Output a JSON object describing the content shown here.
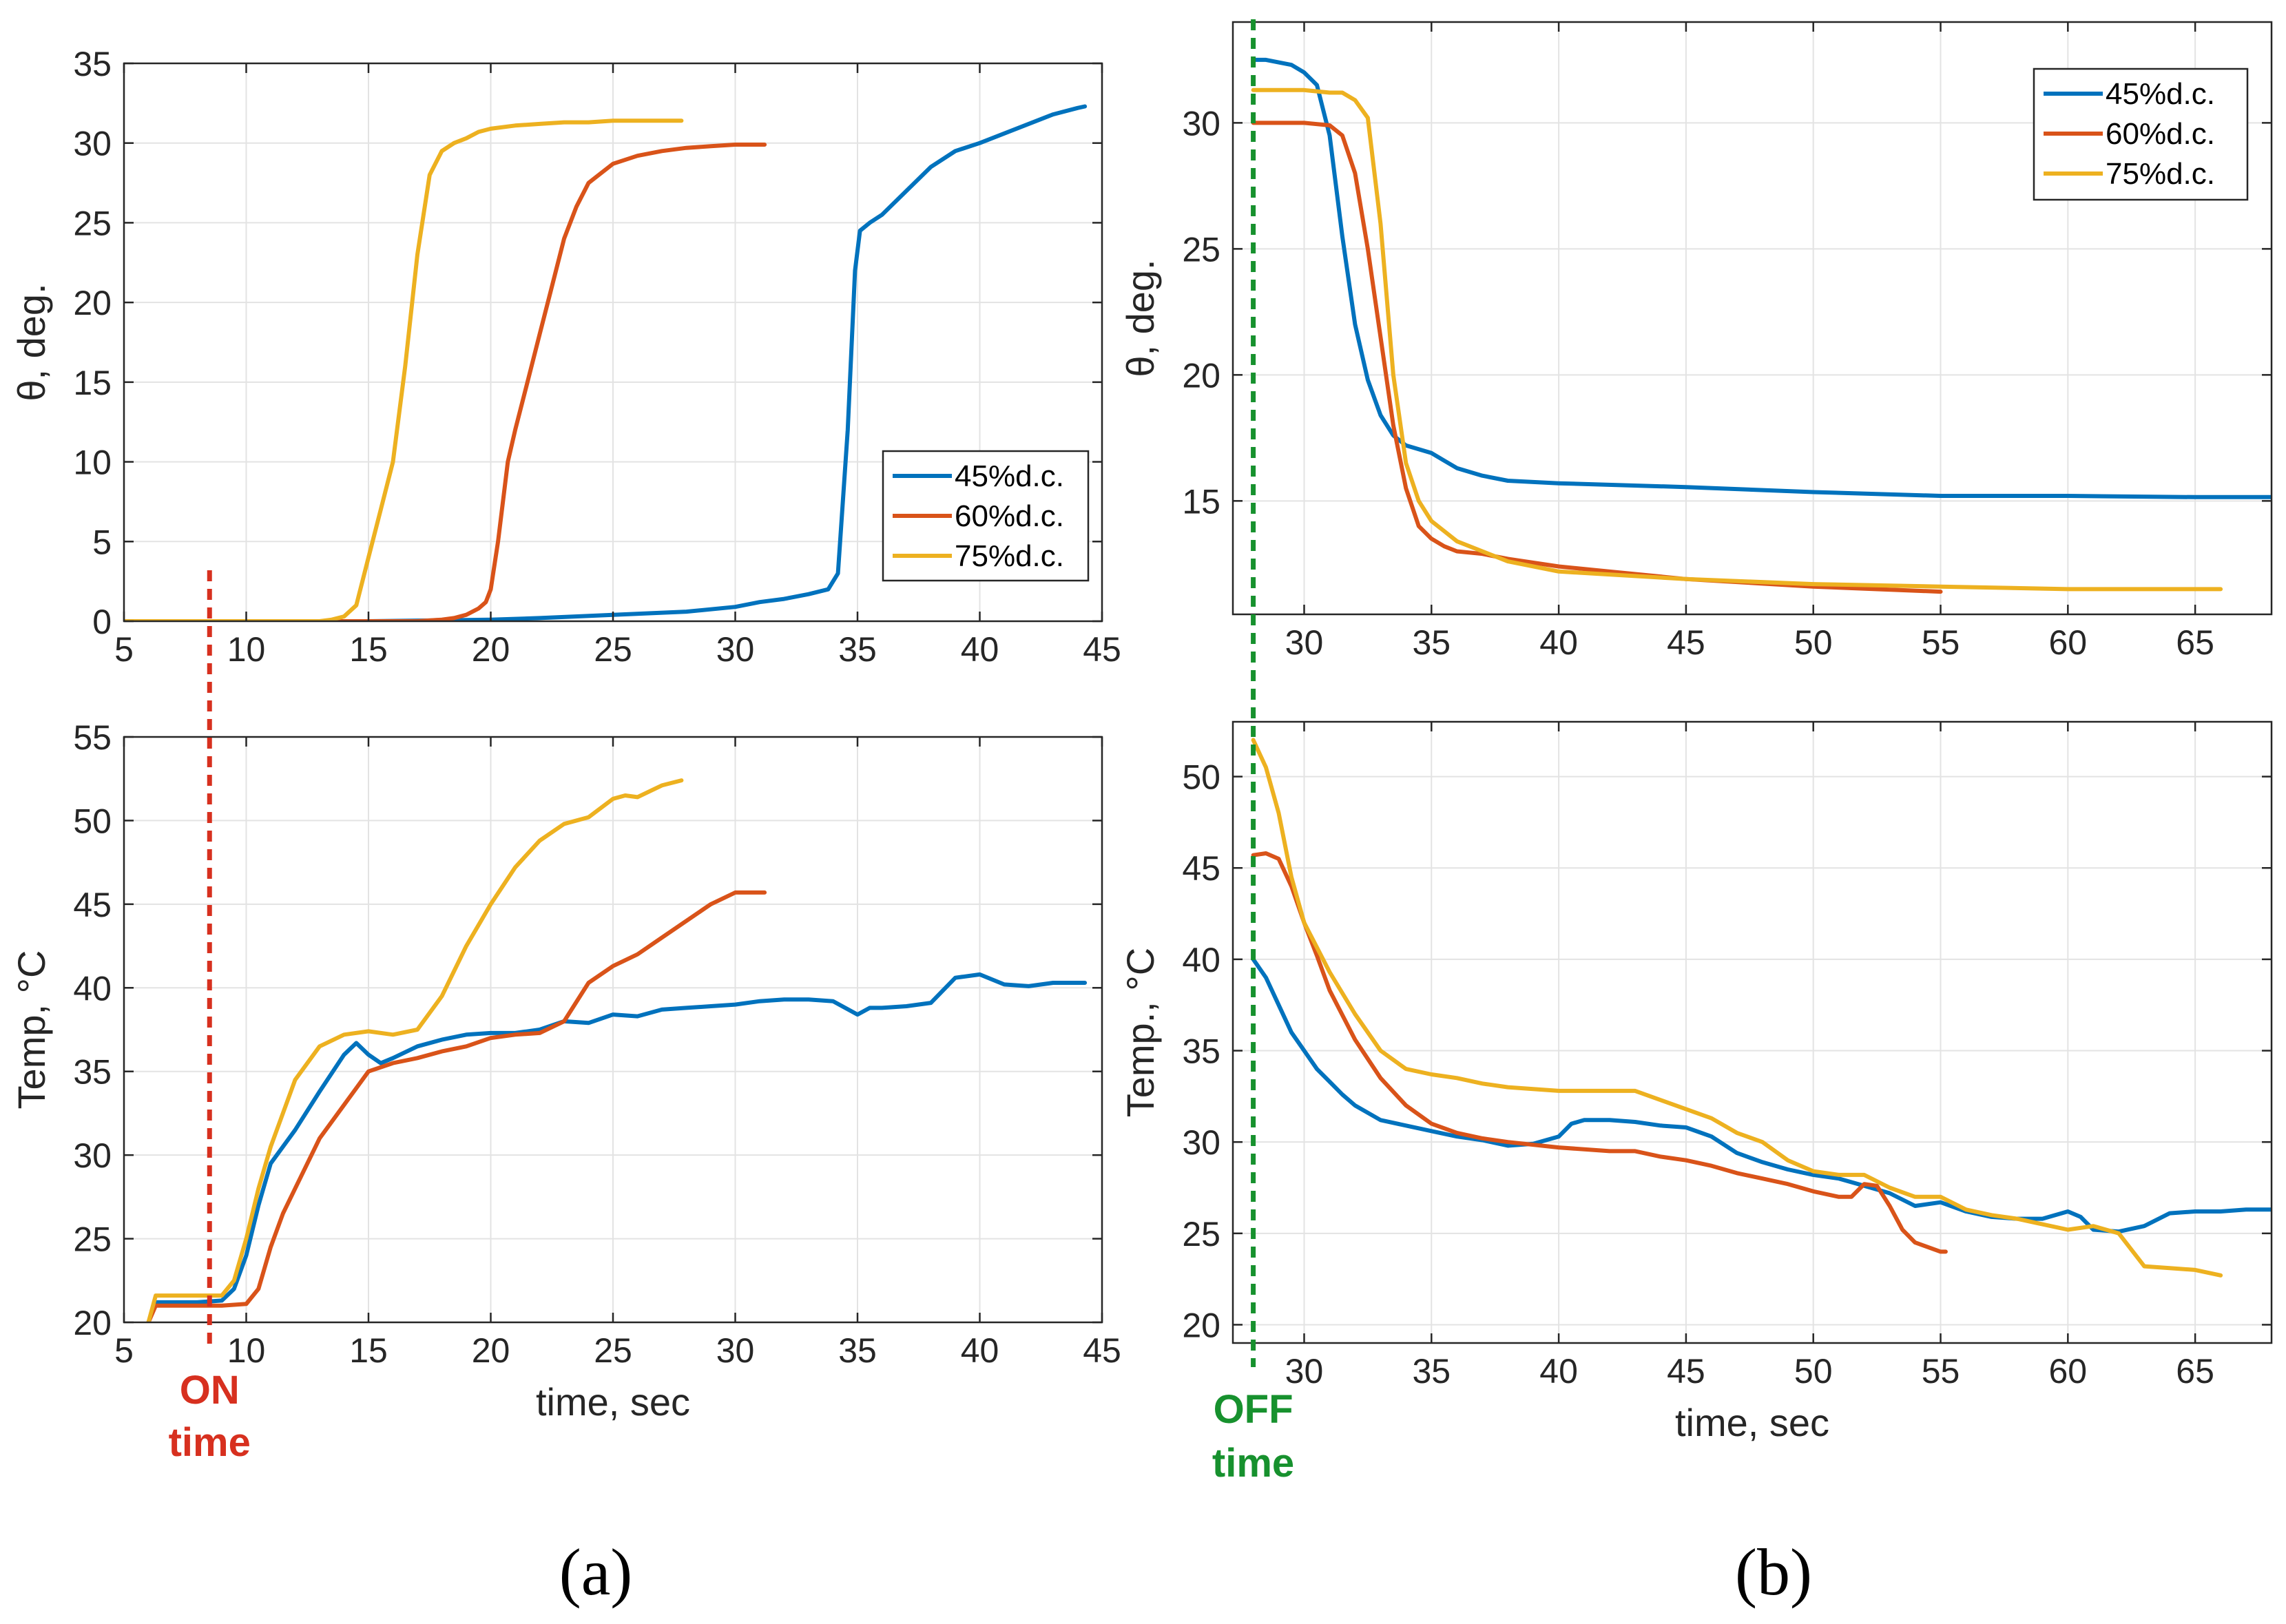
{
  "colors": {
    "s45": "#0072BD",
    "s60": "#D95319",
    "s75": "#EDB120",
    "on_marker": "#D7301F",
    "off_marker": "#17912E"
  },
  "labels": {
    "panel_a": "(a)",
    "panel_b": "(b)"
  },
  "markers": {
    "on": {
      "line1": "ON",
      "line2": "time",
      "x": 8.5
    },
    "off": {
      "line1": "OFF",
      "line2": "time",
      "x": 28
    }
  },
  "chart_data": [
    {
      "id": "a-top",
      "type": "line",
      "xlabel": "",
      "ylabel": "θ, deg.",
      "xlim": [
        5,
        45
      ],
      "ylim": [
        0,
        35
      ],
      "xticks": [
        5,
        10,
        15,
        20,
        25,
        30,
        35,
        40,
        45
      ],
      "xtick_labels": [
        "5",
        "10",
        "15",
        "20",
        "25",
        "30",
        "35",
        "40",
        "45"
      ],
      "yticks": [
        0,
        5,
        10,
        15,
        20,
        25,
        30,
        35
      ],
      "legend": {
        "position": "bottom-right",
        "entries": [
          "45%d.c.",
          "60%d.c.",
          "75%d.c."
        ]
      },
      "series": [
        {
          "name": "45%d.c.",
          "color_key": "s45",
          "x": [
            5,
            15,
            20,
            22,
            25,
            28,
            30,
            31,
            32,
            33,
            33.8,
            34.2,
            34.6,
            34.9,
            35.1,
            35.5,
            36,
            37,
            38,
            39,
            40,
            41,
            42,
            43,
            44,
            44.3
          ],
          "y": [
            0,
            0,
            0.1,
            0.2,
            0.4,
            0.6,
            0.9,
            1.2,
            1.4,
            1.7,
            2,
            3,
            12,
            22,
            24.5,
            25,
            25.5,
            27,
            28.5,
            29.5,
            30,
            30.6,
            31.2,
            31.8,
            32.2,
            32.3
          ]
        },
        {
          "name": "60%d.c.",
          "color_key": "s60",
          "x": [
            5,
            15,
            17,
            18,
            18.5,
            19,
            19.5,
            19.8,
            20,
            20.3,
            20.7,
            21,
            21.5,
            22,
            22.5,
            23,
            23.5,
            24,
            25,
            26,
            27,
            28,
            29,
            30,
            31,
            31.2
          ],
          "y": [
            0,
            0,
            0,
            0.1,
            0.2,
            0.4,
            0.8,
            1.2,
            2,
            5,
            10,
            12,
            15,
            18,
            21,
            24,
            26,
            27.5,
            28.7,
            29.2,
            29.5,
            29.7,
            29.8,
            29.9,
            29.9,
            29.9
          ]
        },
        {
          "name": "75%d.c.",
          "color_key": "s75",
          "x": [
            5,
            13,
            13.5,
            14,
            14.5,
            15,
            15.5,
            16,
            16.5,
            17,
            17.5,
            18,
            18.5,
            19,
            19.5,
            20,
            21,
            22,
            23,
            24,
            25,
            26,
            27,
            27.8
          ],
          "y": [
            0,
            0,
            0.1,
            0.3,
            1,
            4,
            7,
            10,
            16,
            23,
            28,
            29.5,
            30,
            30.3,
            30.7,
            30.9,
            31.1,
            31.2,
            31.3,
            31.3,
            31.4,
            31.4,
            31.4,
            31.4
          ]
        }
      ]
    },
    {
      "id": "a-bottom",
      "type": "line",
      "xlabel": "time, sec",
      "ylabel": "Temp, °C",
      "xlim": [
        5,
        45
      ],
      "ylim": [
        20,
        55
      ],
      "xticks": [
        5,
        10,
        15,
        20,
        25,
        30,
        35,
        40,
        45
      ],
      "xtick_labels": [
        "5",
        "10",
        "15",
        "20",
        "25",
        "30",
        "35",
        "40",
        "45"
      ],
      "yticks": [
        20,
        25,
        30,
        35,
        40,
        45,
        50,
        55
      ],
      "series": [
        {
          "name": "45%d.c.",
          "color_key": "s45",
          "x": [
            6,
            6.3,
            7,
            8,
            9,
            9.5,
            10,
            10.5,
            11,
            12,
            13,
            14,
            14.5,
            15,
            15.5,
            16,
            17,
            18,
            19,
            20,
            21,
            22,
            23,
            24,
            25,
            26,
            27,
            28,
            29,
            30,
            31,
            32,
            33,
            34,
            35,
            35.5,
            36,
            37,
            38,
            39,
            40,
            41,
            42,
            43,
            44,
            44.3
          ],
          "y": [
            20,
            21.2,
            21.2,
            21.2,
            21.3,
            22,
            24,
            27,
            29.5,
            31.5,
            33.8,
            36,
            36.7,
            36,
            35.5,
            35.8,
            36.5,
            36.9,
            37.2,
            37.3,
            37.3,
            37.5,
            38,
            37.9,
            38.4,
            38.3,
            38.7,
            38.8,
            38.9,
            39,
            39.2,
            39.3,
            39.3,
            39.2,
            38.4,
            38.8,
            38.8,
            38.9,
            39.1,
            40.6,
            40.8,
            40.2,
            40.1,
            40.3,
            40.3,
            40.3
          ]
        },
        {
          "name": "60%d.c.",
          "color_key": "s60",
          "x": [
            6,
            6.3,
            7,
            8,
            9,
            10,
            10.5,
            11,
            11.5,
            12,
            13,
            14,
            15,
            16,
            17,
            18,
            19,
            20,
            21,
            22,
            23,
            24,
            25,
            26,
            27,
            28,
            29,
            30,
            31,
            31.2
          ],
          "y": [
            20,
            21,
            21,
            21,
            21,
            21.1,
            22,
            24.5,
            26.5,
            28,
            31,
            33,
            35,
            35.5,
            35.8,
            36.2,
            36.5,
            37,
            37.2,
            37.3,
            38,
            40.3,
            41.3,
            42,
            43,
            44,
            45,
            45.7,
            45.7,
            45.7
          ]
        },
        {
          "name": "75%d.c.",
          "color_key": "s75",
          "x": [
            6,
            6.3,
            7,
            8,
            9,
            9.5,
            10,
            10.5,
            11,
            11.5,
            12,
            13,
            14,
            15,
            16,
            17,
            18,
            19,
            20,
            21,
            22,
            23,
            24,
            25,
            25.5,
            26,
            27,
            27.8
          ],
          "y": [
            20,
            21.6,
            21.6,
            21.6,
            21.6,
            22.5,
            25,
            28,
            30.5,
            32.5,
            34.5,
            36.5,
            37.2,
            37.4,
            37.2,
            37.5,
            39.5,
            42.5,
            45,
            47.2,
            48.8,
            49.8,
            50.2,
            51.3,
            51.5,
            51.4,
            52.1,
            52.4
          ]
        }
      ]
    },
    {
      "id": "b-top",
      "type": "line",
      "xlabel": "",
      "ylabel": "θ, deg.",
      "xlim": [
        27.2,
        68
      ],
      "ylim": [
        10.5,
        34
      ],
      "xticks": [
        30,
        35,
        40,
        45,
        50,
        55,
        60,
        65
      ],
      "xtick_labels": [
        "30",
        "35",
        "40",
        "45",
        "50",
        "55",
        "60",
        "65"
      ],
      "yticks": [
        15,
        20,
        25,
        30
      ],
      "legend": {
        "position": "top-right",
        "entries": [
          "45%d.c.",
          "60%d.c.",
          "75%d.c."
        ]
      },
      "series": [
        {
          "name": "45%d.c.",
          "color_key": "s45",
          "x": [
            28,
            28.5,
            29,
            29.5,
            30,
            30.5,
            31,
            31.5,
            32,
            32.5,
            33,
            33.5,
            34,
            35,
            35.5,
            36,
            37,
            38,
            40,
            45,
            50,
            55,
            60,
            65,
            68
          ],
          "y": [
            32.5,
            32.5,
            32.4,
            32.3,
            32,
            31.5,
            29.5,
            25.5,
            22,
            19.8,
            18.4,
            17.6,
            17.2,
            16.9,
            16.6,
            16.3,
            16,
            15.8,
            15.7,
            15.55,
            15.35,
            15.2,
            15.2,
            15.15,
            15.15
          ]
        },
        {
          "name": "60%d.c.",
          "color_key": "s60",
          "x": [
            28,
            29,
            30,
            31,
            31.5,
            32,
            32.5,
            33,
            33.5,
            34,
            34.5,
            35,
            35.5,
            36,
            37,
            38,
            40,
            42,
            45,
            50,
            55
          ],
          "y": [
            30,
            30,
            30,
            29.9,
            29.5,
            28,
            25,
            21.5,
            18,
            15.5,
            14,
            13.5,
            13.2,
            13,
            12.9,
            12.7,
            12.4,
            12.2,
            11.9,
            11.6,
            11.4
          ]
        },
        {
          "name": "75%d.c.",
          "color_key": "s75",
          "x": [
            28,
            29,
            30,
            31,
            31.5,
            32,
            32.5,
            33,
            33.5,
            34,
            34.5,
            35,
            35.5,
            36,
            37,
            38,
            40,
            45,
            50,
            55,
            60,
            66
          ],
          "y": [
            31.3,
            31.3,
            31.3,
            31.2,
            31.2,
            30.9,
            30.2,
            26,
            20,
            16.5,
            15,
            14.2,
            13.8,
            13.4,
            13,
            12.6,
            12.2,
            11.9,
            11.7,
            11.6,
            11.5,
            11.5
          ]
        }
      ]
    },
    {
      "id": "b-bottom",
      "type": "line",
      "xlabel": "time, sec",
      "ylabel": "Temp., °C",
      "xlim": [
        27.2,
        68
      ],
      "ylim": [
        19,
        53
      ],
      "xticks": [
        30,
        35,
        40,
        45,
        50,
        55,
        60,
        65
      ],
      "xtick_labels": [
        "30",
        "35",
        "40",
        "45",
        "50",
        "55",
        "60",
        "65"
      ],
      "yticks": [
        20,
        25,
        30,
        35,
        40,
        45,
        50
      ],
      "series": [
        {
          "name": "45%d.c.",
          "color_key": "s45",
          "x": [
            28,
            28.5,
            29,
            29.5,
            30,
            30.5,
            31,
            31.5,
            32,
            33,
            34,
            35,
            36,
            37,
            38,
            39,
            40,
            40.5,
            41,
            42,
            43,
            44,
            45,
            46,
            47,
            48,
            49,
            50,
            51,
            52,
            53,
            54,
            55,
            56,
            57,
            58,
            59,
            60,
            60.5,
            61,
            62,
            63,
            64,
            65,
            66,
            67,
            68
          ],
          "y": [
            40,
            39,
            37.5,
            36,
            35,
            34,
            33.3,
            32.6,
            32,
            31.2,
            30.9,
            30.6,
            30.3,
            30.1,
            29.8,
            29.9,
            30.3,
            31,
            31.2,
            31.2,
            31.1,
            30.9,
            30.8,
            30.3,
            29.4,
            28.9,
            28.5,
            28.2,
            28,
            27.6,
            27.2,
            26.5,
            26.7,
            26.2,
            25.9,
            25.8,
            25.8,
            26.2,
            25.9,
            25.2,
            25.1,
            25.4,
            26.1,
            26.2,
            26.2,
            26.3,
            26.3
          ]
        },
        {
          "name": "60%d.c.",
          "color_key": "s60",
          "x": [
            28,
            28.5,
            29,
            29.5,
            30,
            30.5,
            31,
            32,
            33,
            34,
            35,
            36,
            37,
            38,
            40,
            42,
            43,
            44,
            45,
            46,
            47,
            48,
            49,
            50,
            51,
            51.5,
            52,
            52.5,
            53,
            53.5,
            54,
            55,
            55.2
          ],
          "y": [
            45.7,
            45.8,
            45.5,
            44,
            42,
            40.2,
            38.3,
            35.6,
            33.5,
            32,
            31,
            30.5,
            30.2,
            30,
            29.7,
            29.5,
            29.5,
            29.2,
            29,
            28.7,
            28.3,
            28,
            27.7,
            27.3,
            27,
            27,
            27.7,
            27.6,
            26.5,
            25.2,
            24.5,
            24,
            24
          ]
        },
        {
          "name": "75%d.c.",
          "color_key": "s75",
          "x": [
            28,
            28.5,
            29,
            29.5,
            30,
            31,
            32,
            33,
            34,
            35,
            36,
            37,
            38,
            40,
            42,
            43,
            44,
            45,
            46,
            47,
            48,
            49,
            50,
            51,
            52,
            53,
            54,
            55,
            56,
            57,
            58,
            59,
            60,
            61,
            62,
            63,
            64,
            65,
            66
          ],
          "y": [
            52,
            50.5,
            48,
            44.5,
            42,
            39.3,
            37,
            35,
            34,
            33.7,
            33.5,
            33.2,
            33,
            32.8,
            32.8,
            32.8,
            32.3,
            31.8,
            31.3,
            30.5,
            30,
            29,
            28.4,
            28.2,
            28.2,
            27.5,
            27,
            27,
            26.3,
            26,
            25.8,
            25.5,
            25.2,
            25.4,
            25,
            23.2,
            23.1,
            23,
            22.7
          ]
        }
      ]
    }
  ]
}
